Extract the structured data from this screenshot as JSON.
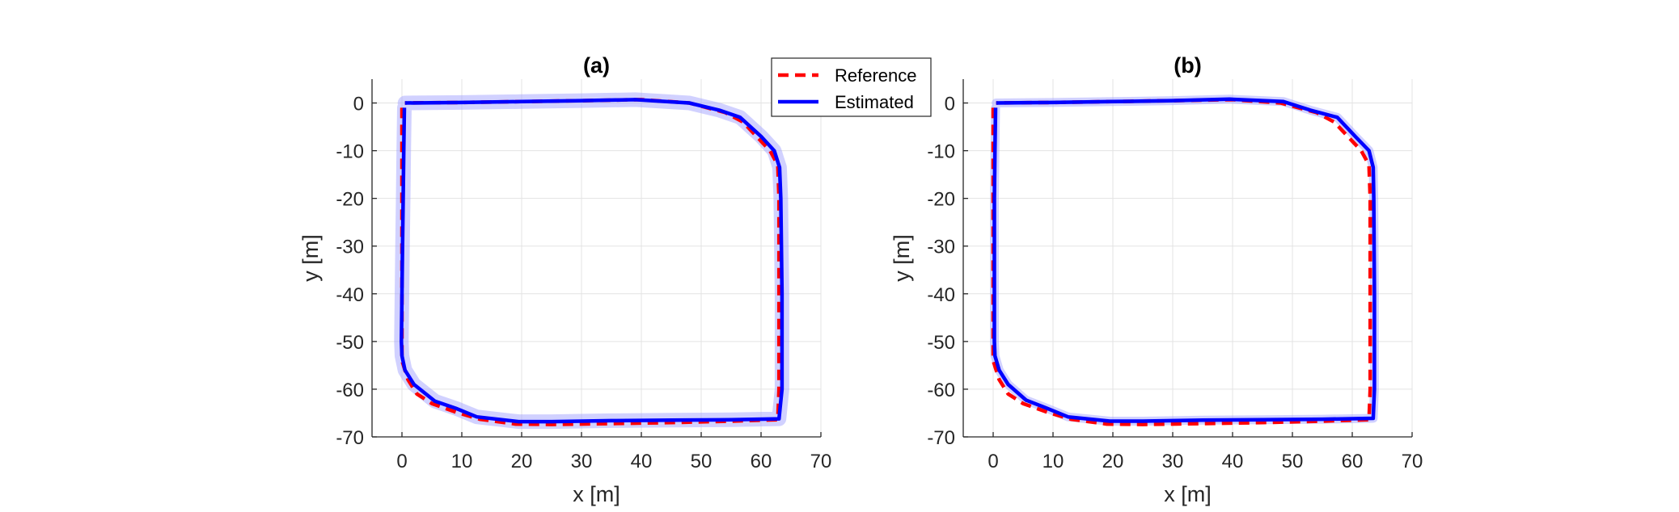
{
  "figure": {
    "legend": {
      "location": "top-left of panel (b), between the two panels",
      "entries": [
        {
          "label": "Reference",
          "color": "#ff0000",
          "style": "dashed"
        },
        {
          "label": "Estimated",
          "color": "#0000ff",
          "style": "solid"
        }
      ]
    }
  },
  "chart_data": [
    {
      "type": "line",
      "title": "(a)",
      "xlabel": "x [m]",
      "ylabel": "y [m]",
      "xlim": [
        -5,
        70
      ],
      "ylim": [
        -70,
        5
      ],
      "xticks": [
        0,
        10,
        20,
        30,
        40,
        50,
        60,
        70
      ],
      "yticks": [
        0,
        -10,
        -20,
        -30,
        -40,
        -50,
        -60,
        -70
      ],
      "grid": true,
      "uncertainty_band": {
        "color": "#9a9aff",
        "description": "translucent blue band around estimated path"
      },
      "series": [
        {
          "name": "Reference",
          "color": "#ff0000",
          "style": "dashed",
          "points": [
            [
              0,
              -1
            ],
            [
              0,
              -10
            ],
            [
              0,
              -20
            ],
            [
              0,
              -30
            ],
            [
              0,
              -40
            ],
            [
              0,
              -50
            ],
            [
              0,
              -54
            ],
            [
              1,
              -58
            ],
            [
              2.5,
              -61
            ],
            [
              5,
              -63
            ],
            [
              9,
              -64.8
            ],
            [
              13,
              -66.3
            ],
            [
              19,
              -67.3
            ],
            [
              25,
              -67.4
            ],
            [
              35,
              -67.2
            ],
            [
              45,
              -67
            ],
            [
              55,
              -66.7
            ],
            [
              62.8,
              -66.4
            ],
            [
              63,
              -60
            ],
            [
              63,
              -40
            ],
            [
              63,
              -20
            ],
            [
              62.8,
              -13
            ],
            [
              61.5,
              -10
            ],
            [
              60,
              -8
            ],
            [
              57,
              -4
            ],
            [
              54,
              -2
            ],
            [
              48,
              0
            ],
            [
              40,
              0.7
            ],
            [
              30,
              0.5
            ],
            [
              20,
              0.3
            ],
            [
              10,
              0.1
            ],
            [
              0.5,
              0
            ]
          ]
        },
        {
          "name": "Estimated",
          "color": "#0000ff",
          "style": "solid",
          "points": [
            [
              0.4,
              -1
            ],
            [
              0.3,
              -10
            ],
            [
              0.2,
              -20
            ],
            [
              0.1,
              -30
            ],
            [
              0,
              -40
            ],
            [
              -0.1,
              -50
            ],
            [
              0,
              -53
            ],
            [
              0.5,
              -56
            ],
            [
              2,
              -59
            ],
            [
              5.5,
              -62.5
            ],
            [
              9,
              -64
            ],
            [
              12.5,
              -65.8
            ],
            [
              19.5,
              -66.8
            ],
            [
              25,
              -66.8
            ],
            [
              35,
              -66.6
            ],
            [
              45,
              -66.5
            ],
            [
              55,
              -66.4
            ],
            [
              63,
              -66.2
            ],
            [
              63.5,
              -60
            ],
            [
              63.5,
              -40
            ],
            [
              63.3,
              -20
            ],
            [
              63.1,
              -13.5
            ],
            [
              62.2,
              -10
            ],
            [
              60,
              -7
            ],
            [
              56.5,
              -3
            ],
            [
              53,
              -1.5
            ],
            [
              48,
              0
            ],
            [
              39,
              0.7
            ],
            [
              30,
              0.5
            ],
            [
              20,
              0.3
            ],
            [
              10,
              0.1
            ],
            [
              0.5,
              0
            ]
          ]
        }
      ]
    },
    {
      "type": "line",
      "title": "(b)",
      "xlabel": "x [m]",
      "ylabel": "y [m]",
      "xlim": [
        -5,
        70
      ],
      "ylim": [
        -70,
        5
      ],
      "xticks": [
        0,
        10,
        20,
        30,
        40,
        50,
        60,
        70
      ],
      "yticks": [
        0,
        -10,
        -20,
        -30,
        -40,
        -50,
        -60,
        -70
      ],
      "grid": true,
      "uncertainty_band": {
        "color": "#9a9aff",
        "description": "narrow translucent blue band around estimated path"
      },
      "series": [
        {
          "name": "Reference",
          "color": "#ff0000",
          "style": "dashed",
          "points": [
            [
              0,
              -1
            ],
            [
              0,
              -10
            ],
            [
              0,
              -20
            ],
            [
              0,
              -30
            ],
            [
              0,
              -40
            ],
            [
              0,
              -50
            ],
            [
              0,
              -54
            ],
            [
              1,
              -58
            ],
            [
              2.5,
              -61
            ],
            [
              5,
              -63
            ],
            [
              9,
              -64.8
            ],
            [
              13,
              -66.3
            ],
            [
              19,
              -67.3
            ],
            [
              25,
              -67.4
            ],
            [
              35,
              -67.2
            ],
            [
              45,
              -67
            ],
            [
              55,
              -66.7
            ],
            [
              62.8,
              -66.4
            ],
            [
              63,
              -60
            ],
            [
              63,
              -40
            ],
            [
              63,
              -20
            ],
            [
              62.8,
              -13
            ],
            [
              61.5,
              -10
            ],
            [
              60,
              -8
            ],
            [
              57,
              -4
            ],
            [
              54,
              -2
            ],
            [
              48,
              0
            ],
            [
              40,
              0.7
            ],
            [
              30,
              0.5
            ],
            [
              20,
              0.3
            ],
            [
              10,
              0.1
            ],
            [
              0.5,
              0
            ]
          ]
        },
        {
          "name": "Estimated",
          "color": "#0000ff",
          "style": "solid",
          "points": [
            [
              0.4,
              -1
            ],
            [
              0.3,
              -10
            ],
            [
              0.2,
              -20
            ],
            [
              0.2,
              -30
            ],
            [
              0.2,
              -40
            ],
            [
              0.2,
              -50
            ],
            [
              0.3,
              -53
            ],
            [
              1,
              -56
            ],
            [
              2.5,
              -59
            ],
            [
              5.5,
              -62.3
            ],
            [
              9,
              -64
            ],
            [
              12.5,
              -65.8
            ],
            [
              19.5,
              -66.7
            ],
            [
              25,
              -66.7
            ],
            [
              35,
              -66.5
            ],
            [
              45,
              -66.4
            ],
            [
              55,
              -66.3
            ],
            [
              63.5,
              -66.1
            ],
            [
              63.7,
              -60
            ],
            [
              63.7,
              -40
            ],
            [
              63.6,
              -20
            ],
            [
              63.5,
              -13.5
            ],
            [
              62.8,
              -10
            ],
            [
              60.5,
              -7
            ],
            [
              57.5,
              -3
            ],
            [
              53,
              -1.5
            ],
            [
              48.5,
              0.3
            ],
            [
              39.5,
              0.8
            ],
            [
              30,
              0.5
            ],
            [
              20,
              0.3
            ],
            [
              10,
              0.1
            ],
            [
              0.5,
              0
            ]
          ]
        }
      ]
    }
  ]
}
